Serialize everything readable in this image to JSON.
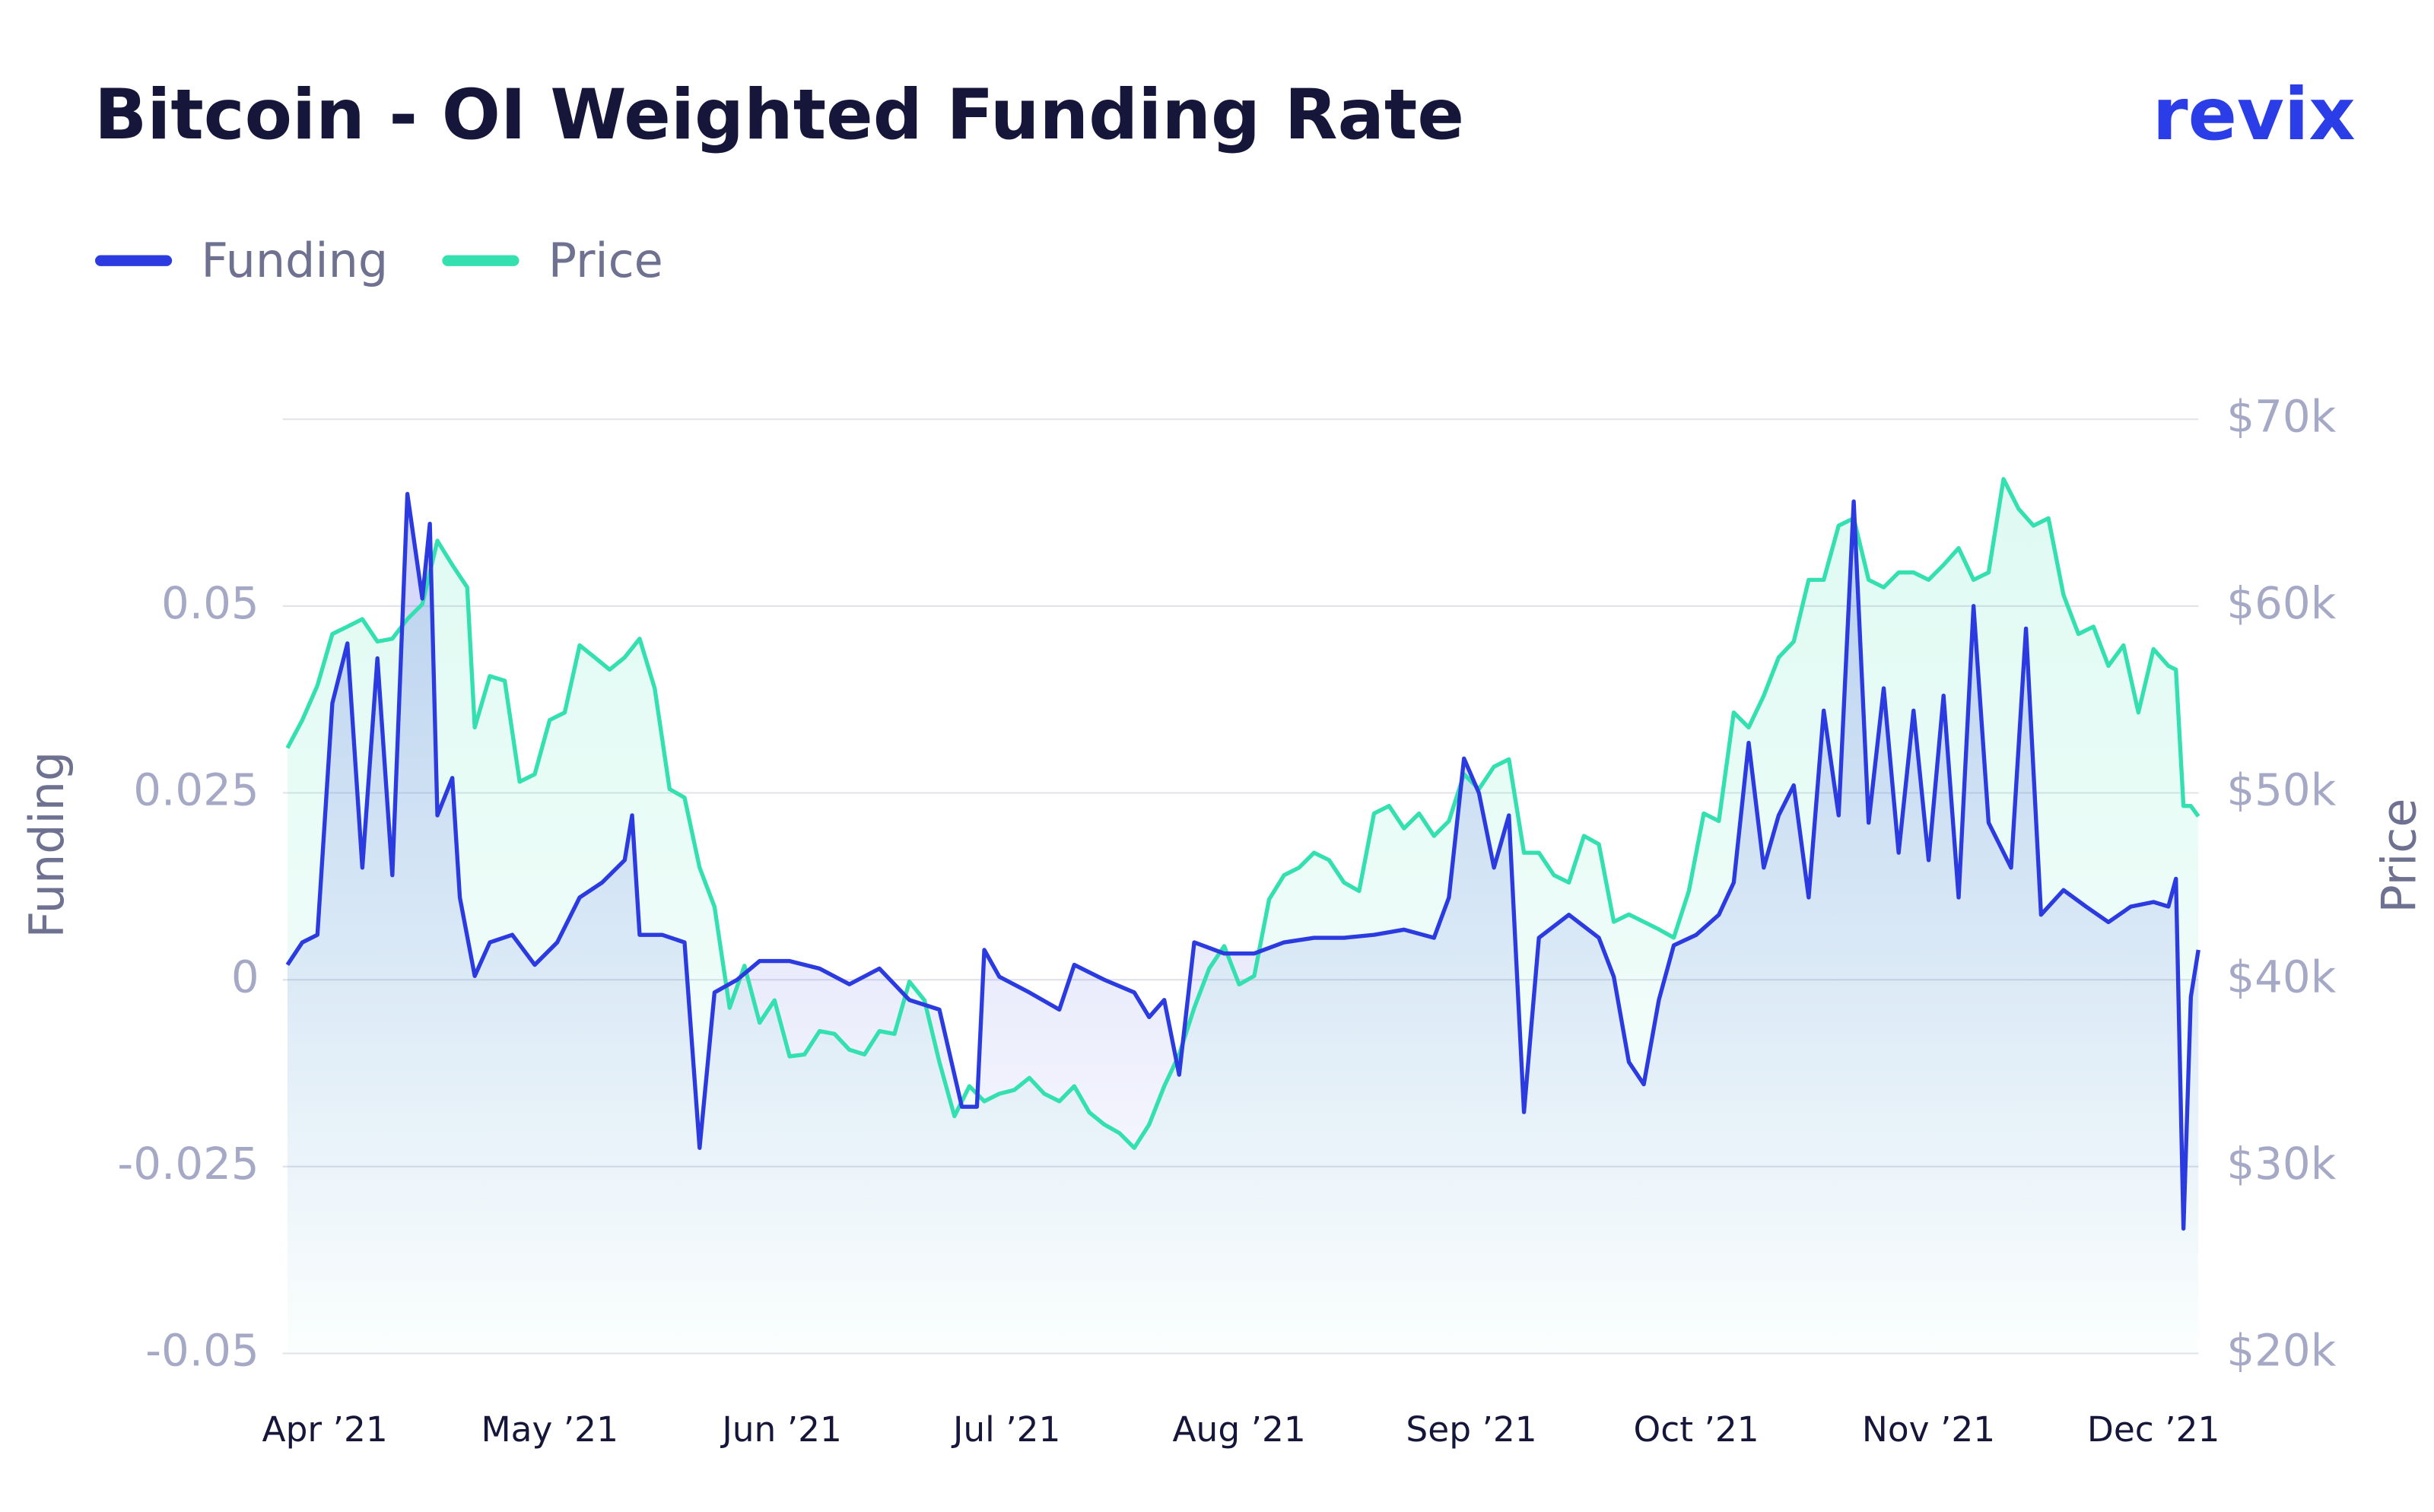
{
  "chart_data": {
    "type": "line",
    "title": "Bitcoin - OI Weighted Funding Rate",
    "brand": "revix",
    "ylabel": "Funding",
    "y2label": "Price",
    "xlim": [
      -5,
      250
    ],
    "xticks": [
      {
        "value": 0,
        "label": "Apr ’21"
      },
      {
        "value": 30,
        "label": "May ’21"
      },
      {
        "value": 61,
        "label": "Jun ’21"
      },
      {
        "value": 91,
        "label": "Jul ’21"
      },
      {
        "value": 122,
        "label": "Aug ’21"
      },
      {
        "value": 153,
        "label": "Sep ’21"
      },
      {
        "value": 183,
        "label": "Oct ’21"
      },
      {
        "value": 214,
        "label": "Nov ’21"
      },
      {
        "value": 244,
        "label": "Dec ’21"
      }
    ],
    "ylim": [
      -0.05,
      0.075
    ],
    "yticks": [
      -0.05,
      -0.025,
      0,
      0.025,
      0.05
    ],
    "y2lim": [
      20000,
      70000
    ],
    "y2ticks": [
      {
        "value": 20000,
        "label": "$20k"
      },
      {
        "value": 30000,
        "label": "$30k"
      },
      {
        "value": 40000,
        "label": "$40k"
      },
      {
        "value": 50000,
        "label": "$50k"
      },
      {
        "value": 60000,
        "label": "$60k"
      },
      {
        "value": 70000,
        "label": "$70k"
      }
    ],
    "grid": true,
    "legend": "top-left",
    "series": [
      {
        "name": "Funding",
        "color": "#2b3be0",
        "x": [
          -5,
          -3,
          -1,
          1,
          3,
          5,
          7,
          9,
          11,
          13,
          14,
          15,
          17,
          18,
          20,
          22,
          25,
          28,
          31,
          34,
          37,
          40,
          41,
          42,
          45,
          48,
          50,
          52,
          55,
          58,
          62,
          66,
          70,
          74,
          78,
          82,
          85,
          87,
          88,
          90,
          94,
          98,
          100,
          104,
          108,
          110,
          112,
          114,
          116,
          120,
          124,
          128,
          132,
          136,
          140,
          144,
          148,
          150,
          152,
          154,
          156,
          158,
          160,
          162,
          166,
          170,
          172,
          174,
          176,
          178,
          180,
          183,
          186,
          188,
          190,
          192,
          194,
          196,
          198,
          200,
          202,
          204,
          206,
          208,
          210,
          212,
          214,
          216,
          218,
          220,
          222,
          225,
          227,
          229,
          232,
          235,
          238,
          241,
          244,
          246,
          247,
          248,
          249,
          250
        ],
        "values": [
          0.002,
          0.005,
          0.006,
          0.037,
          0.045,
          0.015,
          0.043,
          0.014,
          0.065,
          0.051,
          0.061,
          0.022,
          0.027,
          0.011,
          0.0005,
          0.005,
          0.006,
          0.002,
          0.005,
          0.011,
          0.013,
          0.016,
          0.022,
          0.006,
          0.006,
          0.005,
          -0.0225,
          -0.0017,
          0,
          0.0025,
          0.0025,
          0.0015,
          -0.0006,
          0.0015,
          -0.0027,
          -0.004,
          -0.017,
          -0.017,
          0.004,
          0.0004,
          -0.0017,
          -0.004,
          0.002,
          0,
          -0.0017,
          -0.005,
          -0.0027,
          -0.0127,
          0.005,
          0.0035,
          0.0035,
          0.005,
          0.0056,
          0.0056,
          0.006,
          0.0067,
          0.0056,
          0.011,
          0.0296,
          0.025,
          0.015,
          0.022,
          -0.0177,
          0.0056,
          0.0087,
          0.0056,
          0.0004,
          -0.011,
          -0.014,
          -0.0027,
          0.0046,
          0.006,
          0.0087,
          0.013,
          0.0317,
          0.015,
          0.022,
          0.026,
          0.011,
          0.036,
          0.022,
          0.064,
          0.021,
          0.039,
          0.017,
          0.036,
          0.016,
          0.038,
          0.011,
          0.05,
          0.021,
          0.015,
          0.047,
          0.0087,
          0.012,
          0.0098,
          0.0077,
          0.0098,
          0.0104,
          0.0098,
          0.0135,
          -0.0333,
          -0.0023,
          0.004
        ]
      },
      {
        "name": "Price",
        "color": "#34e0b0",
        "axis": "y2",
        "x": [
          -5,
          -3,
          -1,
          1,
          3,
          5,
          7,
          9,
          11,
          13,
          15,
          17,
          19,
          20,
          22,
          24,
          26,
          28,
          30,
          32,
          34,
          36,
          38,
          40,
          42,
          44,
          46,
          48,
          50,
          52,
          54,
          56,
          58,
          60,
          62,
          64,
          66,
          68,
          70,
          72,
          74,
          76,
          78,
          80,
          82,
          84,
          86,
          88,
          90,
          92,
          94,
          96,
          98,
          100,
          102,
          104,
          106,
          108,
          110,
          112,
          114,
          116,
          118,
          120,
          122,
          124,
          126,
          128,
          130,
          132,
          134,
          136,
          138,
          140,
          142,
          144,
          146,
          148,
          150,
          152,
          154,
          156,
          158,
          160,
          162,
          164,
          166,
          168,
          170,
          172,
          174,
          176,
          178,
          180,
          182,
          184,
          186,
          188,
          190,
          192,
          194,
          196,
          198,
          200,
          202,
          204,
          206,
          208,
          210,
          212,
          214,
          216,
          218,
          220,
          222,
          224,
          226,
          228,
          230,
          232,
          234,
          236,
          238,
          240,
          242,
          244,
          246,
          247,
          248,
          249,
          250
        ],
        "values": [
          52400,
          53900,
          55750,
          58500,
          58900,
          59300,
          58100,
          58250,
          59300,
          60100,
          63500,
          62200,
          61000,
          53500,
          56250,
          56000,
          50600,
          51000,
          53900,
          54300,
          57900,
          57250,
          56600,
          57250,
          58250,
          55600,
          50200,
          49750,
          46000,
          43900,
          38500,
          40750,
          37700,
          38900,
          35900,
          36000,
          37250,
          37100,
          36250,
          36000,
          37250,
          37100,
          39900,
          38900,
          35600,
          32700,
          34300,
          33500,
          33900,
          34100,
          34750,
          33900,
          33500,
          34300,
          32900,
          32250,
          31800,
          31000,
          32250,
          34300,
          36000,
          38500,
          40600,
          41800,
          39750,
          40200,
          44300,
          45600,
          46000,
          46800,
          46400,
          45200,
          44750,
          48900,
          49300,
          48100,
          48900,
          47700,
          48500,
          51000,
          50200,
          51400,
          51800,
          46800,
          46800,
          45600,
          45200,
          47700,
          47250,
          43100,
          43500,
          43100,
          42700,
          42250,
          44750,
          48900,
          48500,
          54300,
          53500,
          55200,
          57250,
          58100,
          61400,
          61400,
          64300,
          64700,
          61400,
          61000,
          61800,
          61800,
          61400,
          62200,
          63100,
          61400,
          61800,
          66800,
          65200,
          64300,
          64700,
          60600,
          58500,
          58900,
          56800,
          57900,
          54300,
          57700,
          56800,
          56600,
          49300,
          49300,
          48750
        ]
      }
    ]
  }
}
